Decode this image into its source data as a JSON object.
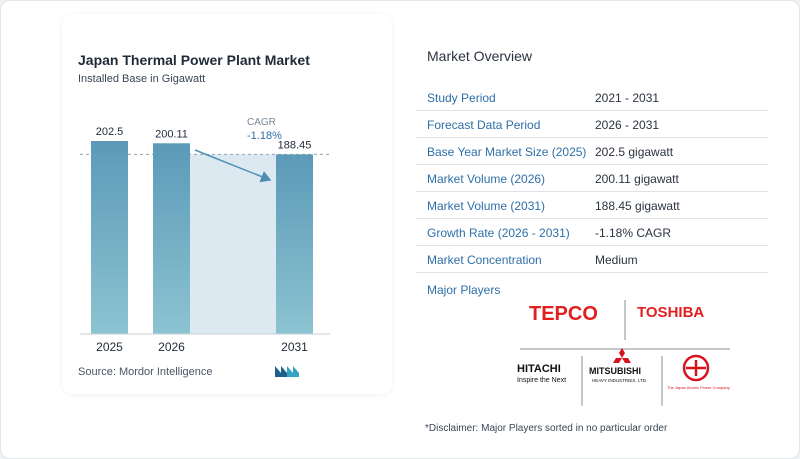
{
  "chart_data": {
    "type": "bar",
    "title": "Japan Thermal Power Plant Market",
    "subtitle": "Installed Base in Gigawatt",
    "categories": [
      "2025",
      "2026",
      "2031"
    ],
    "values": [
      202.5,
      200.11,
      188.45
    ],
    "value_labels": [
      "202.5",
      "200.11",
      "188.45"
    ],
    "cagr_label": "CAGR",
    "cagr_value": "-1.18%",
    "grid": false,
    "bar_color": "#5b9ab8",
    "bar_color_bottom": "#8cc3d1",
    "band_color": "#dde9f1",
    "accent_color": "#2f6fa8"
  },
  "source": "Source:  Mordor Intelligence",
  "overview": {
    "title": "Market Overview",
    "rows": [
      {
        "key": "Study Period",
        "value": "2021 - 2031"
      },
      {
        "key": "Forecast Data Period",
        "value": "2026 - 2031"
      },
      {
        "key": "Base Year Market Size (2025)",
        "value": "202.5 gigawatt"
      },
      {
        "key": "Market Volume (2026)",
        "value": "200.11 gigawatt"
      },
      {
        "key": "Market Volume (2031)",
        "value": "188.45 gigawatt"
      },
      {
        "key": "Growth Rate (2026 - 2031)",
        "value": "-1.18% CAGR"
      },
      {
        "key": "Market Concentration",
        "value": "Medium"
      }
    ]
  },
  "players": {
    "title": "Major Players",
    "logos": {
      "tepco": "TEPCO",
      "toshiba": "TOSHIBA",
      "hitachi": "HITACHI",
      "hitachi_tagline": "Inspire the Next",
      "mitsubishi": "MITSUBISHI",
      "mitsubishi_sub": "HEAVY INDUSTRIES, LTD.",
      "jpower": "The Japan Atomic Power Company"
    }
  },
  "disclaimer": "*Disclaimer: Major Players sorted in no particular order"
}
